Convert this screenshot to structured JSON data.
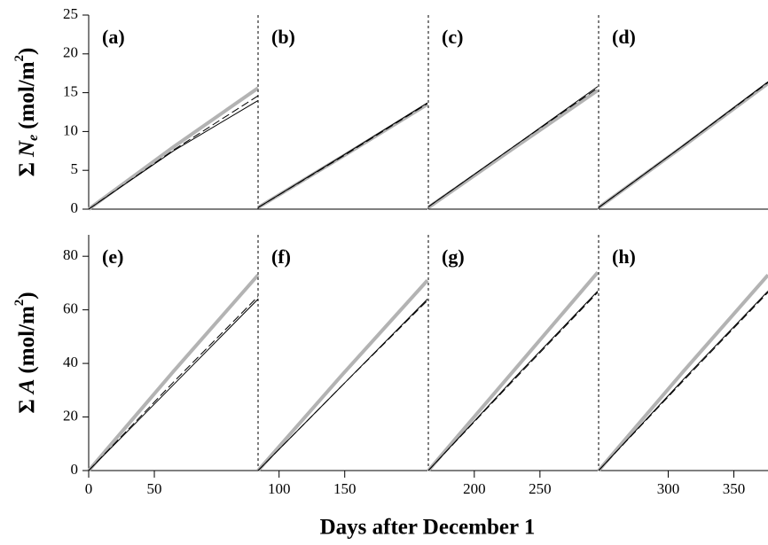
{
  "figure": {
    "xlabel": "Days after December 1"
  },
  "chart_data": [
    {
      "type": "line",
      "label": "(a)",
      "ylabel": [
        "Σ",
        "N",
        "e",
        "(mol/m",
        "2",
        ")"
      ],
      "xlim": [
        0,
        129
      ],
      "ylim": [
        0,
        25
      ],
      "yticks": [
        0,
        5,
        10,
        15,
        20,
        25
      ],
      "x": [
        0,
        64.5,
        129
      ],
      "series": [
        {
          "color": "#b3b3b3",
          "width": 4,
          "dashed": false,
          "values": [
            0,
            8,
            15.6
          ]
        },
        {
          "color": "#000000",
          "width": 1,
          "dashed": false,
          "values": [
            0,
            7.5,
            14
          ]
        },
        {
          "color": "#000000",
          "width": 1,
          "dashed": true,
          "values": [
            0,
            7.6,
            14.6
          ]
        }
      ]
    },
    {
      "type": "line",
      "label": "(b)",
      "xlim": [
        84,
        213
      ],
      "ylim": [
        0,
        25
      ],
      "x": [
        84,
        148.5,
        213
      ],
      "series": [
        {
          "color": "#b3b3b3",
          "width": 4,
          "dashed": false,
          "values": [
            0.2,
            6.8,
            13.5
          ]
        },
        {
          "color": "#000000",
          "width": 1,
          "dashed": false,
          "values": [
            0.2,
            6.9,
            13.7
          ]
        },
        {
          "color": "#000000",
          "width": 1,
          "dashed": true,
          "values": [
            0.2,
            6.8,
            13.6
          ]
        }
      ]
    },
    {
      "type": "line",
      "label": "(c)",
      "xlim": [
        165,
        294
      ],
      "ylim": [
        0,
        25
      ],
      "x": [
        165,
        229.5,
        294
      ],
      "series": [
        {
          "color": "#b3b3b3",
          "width": 4,
          "dashed": false,
          "values": [
            0.2,
            7.8,
            15.3
          ]
        },
        {
          "color": "#000000",
          "width": 1,
          "dashed": false,
          "values": [
            0.3,
            8,
            15.8
          ]
        },
        {
          "color": "#000000",
          "width": 1,
          "dashed": true,
          "values": [
            0.3,
            8,
            15.6
          ]
        }
      ]
    },
    {
      "type": "line",
      "label": "(d)",
      "xlim": [
        247,
        376
      ],
      "ylim": [
        0,
        25
      ],
      "x": [
        247,
        311.5,
        376
      ],
      "series": [
        {
          "color": "#b3b3b3",
          "width": 4,
          "dashed": false,
          "values": [
            0.2,
            8.1,
            16.2
          ]
        },
        {
          "color": "#000000",
          "width": 1,
          "dashed": false,
          "values": [
            0.2,
            8.2,
            16.4
          ]
        },
        {
          "color": "#000000",
          "width": 1,
          "dashed": true,
          "values": [
            0.2,
            8.2,
            16.3
          ]
        }
      ]
    },
    {
      "type": "line",
      "label": "(e)",
      "ylabel": [
        "Σ",
        "A",
        "(mol/m",
        "2",
        ")"
      ],
      "xlim": [
        0,
        129
      ],
      "ylim": [
        0,
        88
      ],
      "yticks": [
        0,
        20,
        40,
        60,
        80
      ],
      "xticks": [
        0,
        50
      ],
      "x": [
        0,
        64.5,
        129
      ],
      "series": [
        {
          "color": "#b3b3b3",
          "width": 4,
          "dashed": false,
          "values": [
            0,
            37,
            73
          ]
        },
        {
          "color": "#000000",
          "width": 1,
          "dashed": false,
          "values": [
            0,
            32,
            64
          ]
        },
        {
          "color": "#000000",
          "width": 1,
          "dashed": true,
          "values": [
            0,
            33,
            65
          ]
        }
      ]
    },
    {
      "type": "line",
      "label": "(f)",
      "xlim": [
        84,
        213
      ],
      "ylim": [
        0,
        88
      ],
      "xticks": [
        100,
        150
      ],
      "x": [
        84,
        148.5,
        213
      ],
      "series": [
        {
          "color": "#b3b3b3",
          "width": 4,
          "dashed": false,
          "values": [
            0,
            36,
            71
          ]
        },
        {
          "color": "#000000",
          "width": 1,
          "dashed": false,
          "values": [
            0,
            32,
            64
          ]
        },
        {
          "color": "#000000",
          "width": 1,
          "dashed": true,
          "values": [
            0,
            32,
            63.5
          ]
        }
      ]
    },
    {
      "type": "line",
      "label": "(g)",
      "xlim": [
        165,
        294
      ],
      "ylim": [
        0,
        88
      ],
      "xticks": [
        200,
        250
      ],
      "x": [
        165,
        229.5,
        294
      ],
      "series": [
        {
          "color": "#b3b3b3",
          "width": 4,
          "dashed": false,
          "values": [
            0,
            37,
            74
          ]
        },
        {
          "color": "#000000",
          "width": 1,
          "dashed": false,
          "values": [
            0,
            34,
            67
          ]
        },
        {
          "color": "#000000",
          "width": 1,
          "dashed": true,
          "values": [
            0,
            33.5,
            66.5
          ]
        }
      ]
    },
    {
      "type": "line",
      "label": "(h)",
      "xlim": [
        247,
        376
      ],
      "ylim": [
        0,
        88
      ],
      "xticks": [
        300,
        350
      ],
      "x": [
        247,
        311.5,
        376
      ],
      "series": [
        {
          "color": "#b3b3b3",
          "width": 4,
          "dashed": false,
          "values": [
            0,
            37,
            73
          ]
        },
        {
          "color": "#000000",
          "width": 1,
          "dashed": false,
          "values": [
            0,
            34,
            67
          ]
        },
        {
          "color": "#000000",
          "width": 1,
          "dashed": true,
          "values": [
            0,
            33.5,
            66.5
          ]
        }
      ]
    }
  ]
}
